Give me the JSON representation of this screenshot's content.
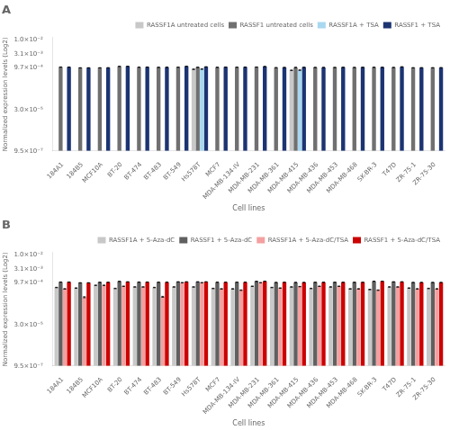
{
  "chart_data": [
    {
      "type": "bar",
      "title": "A",
      "xlabel": "Cell lines",
      "ylabel": "Normalized expression levels (Log2)",
      "categories": [
        "184A1",
        "184B5",
        "MCF10A",
        "BT-20",
        "BT-474",
        "BT-483",
        "BT-549",
        "Hs578T",
        "MCF7",
        "MDA-MB-134-IV",
        "MDA-MB-231",
        "MDA-MB-361",
        "MDA-MB-415",
        "MDA-MB-436",
        "MDA-MB-453",
        "MDA-MB-468",
        "SK-BR-3",
        "T47D",
        "ZR-75-1",
        "ZR-75-30"
      ],
      "series": [
        {
          "name": "RASSF1A untreated cells",
          "color": "#c8c8c8",
          "values": [
            null,
            null,
            null,
            null,
            null,
            null,
            null,
            0.00085,
            null,
            null,
            null,
            null,
            0.00078,
            null,
            null,
            null,
            null,
            null,
            null,
            null
          ],
          "errors": [
            null,
            null,
            null,
            null,
            null,
            null,
            null,
            1.5e-05,
            null,
            null,
            null,
            null,
            1.5e-05,
            null,
            null,
            null,
            null,
            null,
            null,
            null
          ]
        },
        {
          "name": "RASSF1 untreated cells",
          "color": "#707070",
          "values": [
            0.00102,
            0.00096,
            0.00096,
            0.00108,
            0.00101,
            0.001,
            0.00101,
            0.001,
            0.001,
            0.00101,
            0.00102,
            0.000972,
            0.00099,
            0.00099,
            0.00099,
            0.00099,
            0.001,
            0.00099,
            0.000965,
            0.000965
          ],
          "errors": [
            8e-06,
            8e-06,
            8e-06,
            8e-06,
            8e-06,
            8e-06,
            8e-06,
            8e-06,
            8e-06,
            8e-06,
            8e-06,
            8e-06,
            8e-06,
            8e-06,
            8e-06,
            8e-06,
            8e-06,
            8e-06,
            8e-06,
            8e-06
          ]
        },
        {
          "name": "RASSF1A + TSA",
          "color": "#a8d8f0",
          "values": [
            null,
            null,
            null,
            null,
            null,
            null,
            null,
            0.00086,
            null,
            null,
            null,
            null,
            0.00079,
            null,
            null,
            null,
            null,
            null,
            null,
            null
          ],
          "errors": [
            null,
            null,
            null,
            null,
            null,
            null,
            null,
            1.5e-05,
            null,
            null,
            null,
            null,
            1.5e-05,
            null,
            null,
            null,
            null,
            null,
            null,
            null
          ]
        },
        {
          "name": "RASSF1 + TSA",
          "color": "#1c3472",
          "values": [
            0.00102,
            0.00096,
            0.000965,
            0.00109,
            0.00102,
            0.00101,
            0.00109,
            0.00104,
            0.00102,
            0.00102,
            0.00107,
            0.00099,
            0.001,
            0.00099,
            0.001,
            0.001,
            0.001,
            0.00104,
            0.000968,
            0.000972
          ],
          "errors": [
            8e-06,
            8e-06,
            8e-06,
            8e-06,
            8e-06,
            8e-06,
            8e-06,
            8e-06,
            8e-06,
            8e-06,
            1.5e-05,
            8e-06,
            8e-06,
            8e-06,
            8e-06,
            8e-06,
            8e-06,
            8e-06,
            8e-06,
            8e-06
          ]
        }
      ],
      "log": "y",
      "ylim": [
        9.5e-07,
        0.012
      ],
      "yticks": [
        {
          "value": 9.5e-07,
          "label": "9.5×10⁻⁷"
        },
        {
          "value": 3e-05,
          "label": "3.0×10⁻⁵"
        },
        {
          "value": 0.00097,
          "label": "9.7×10⁻⁴"
        },
        {
          "value": 0.0031,
          "label": "3.1×10⁻³"
        },
        {
          "value": 0.01,
          "label": "1.0×10⁻²"
        }
      ],
      "grid": false,
      "legend": "upper right"
    },
    {
      "type": "bar",
      "title": "B",
      "xlabel": "Cell lines",
      "ylabel": "Normalized expression levels (Log2)",
      "categories": [
        "184A1",
        "184B5",
        "MCF10A",
        "BT-20",
        "BT-474",
        "BT-483",
        "BT-549",
        "Hs578T",
        "MCF7",
        "MDA-MB-134-IV",
        "MDA-MB-231",
        "MDA-MB-361",
        "MDA-MB-415",
        "MDA-MB-436",
        "MDA-MB-453",
        "MDA-MB-468",
        "SK-BR-3",
        "T47D",
        "ZR-75-1",
        "ZR-75-30"
      ],
      "series": [
        {
          "name": "RASSF1A + 5-Aza-dC",
          "color": "#c8c8c8",
          "values": [
            0.00065,
            0.00062,
            0.00078,
            0.0006,
            0.00068,
            0.00065,
            0.00068,
            0.00068,
            0.0006,
            0.00058,
            0.00072,
            0.00065,
            0.00068,
            0.0006,
            0.00068,
            0.00058,
            0.00055,
            0.00068,
            0.00062,
            0.0006
          ],
          "errors": [
            1.2e-05,
            1.2e-05,
            1.2e-05,
            1.2e-05,
            1.2e-05,
            1.2e-05,
            1.2e-05,
            1.2e-05,
            1.2e-05,
            1.2e-05,
            1.2e-05,
            1.2e-05,
            1.2e-05,
            1.2e-05,
            1.2e-05,
            1.2e-05,
            1.2e-05,
            1.2e-05,
            1.2e-05,
            1.2e-05
          ]
        },
        {
          "name": "RASSF1 + 5-Aza-dC",
          "color": "#606060",
          "values": [
            0.00102,
            0.00096,
            0.001,
            0.00108,
            0.00102,
            0.00101,
            0.00104,
            0.00104,
            0.00101,
            0.00101,
            0.00108,
            0.00099,
            0.00099,
            0.001,
            0.001,
            0.001,
            0.00109,
            0.00104,
            0.00099,
            0.00099
          ],
          "errors": [
            8e-06,
            8e-06,
            8e-06,
            8e-06,
            8e-06,
            8e-06,
            8e-06,
            8e-06,
            8e-06,
            8e-06,
            1.5e-05,
            8e-06,
            8e-06,
            8e-06,
            8e-06,
            8e-06,
            8e-06,
            8e-06,
            8e-06,
            8e-06
          ]
        },
        {
          "name": "RASSF1A + 5-Aza-dC/TSA",
          "color": "#f4a0a0",
          "values": [
            0.00058,
            0.00029,
            0.00078,
            0.00072,
            0.00068,
            0.0003,
            0.00097,
            0.00097,
            0.00058,
            0.00052,
            0.00097,
            0.00062,
            0.0007,
            0.00072,
            0.00072,
            0.00058,
            0.00052,
            0.00068,
            0.00058,
            0.00058
          ],
          "errors": [
            1.2e-05,
            1.2e-05,
            1.2e-05,
            1.2e-05,
            1.2e-05,
            1.2e-05,
            1.2e-05,
            1.2e-05,
            1.2e-05,
            1.2e-05,
            1.2e-05,
            1.2e-05,
            1.2e-05,
            1.2e-05,
            1.2e-05,
            1.2e-05,
            1.2e-05,
            1.2e-05,
            1.2e-05,
            1.2e-05
          ]
        },
        {
          "name": "RASSF1 + 5-Aza-dC/TSA",
          "color": "#cc0000",
          "values": [
            0.00102,
            0.00096,
            0.001,
            0.00104,
            0.00102,
            0.00101,
            0.00104,
            0.00104,
            0.00101,
            0.00101,
            0.00109,
            0.001,
            0.00099,
            0.001,
            0.001,
            0.001,
            0.00109,
            0.00104,
            0.00099,
            0.00099
          ],
          "errors": [
            8e-06,
            8e-06,
            8e-06,
            8e-06,
            8e-06,
            8e-06,
            8e-06,
            8e-06,
            8e-06,
            8e-06,
            1.5e-05,
            8e-06,
            8e-06,
            8e-06,
            8e-06,
            8e-06,
            8e-06,
            8e-06,
            8e-06,
            8e-06
          ]
        }
      ],
      "log": "y",
      "ylim": [
        9.5e-07,
        0.012
      ],
      "yticks": [
        {
          "value": 9.5e-07,
          "label": "9.5×10⁻⁷"
        },
        {
          "value": 3e-05,
          "label": "3.0×10⁻⁵"
        },
        {
          "value": 0.00097,
          "label": "9.7×10⁻⁴"
        },
        {
          "value": 0.0031,
          "label": "3.1×10⁻³"
        },
        {
          "value": 0.01,
          "label": "1.0×10⁻²"
        }
      ],
      "grid": false,
      "legend": "upper right"
    }
  ]
}
